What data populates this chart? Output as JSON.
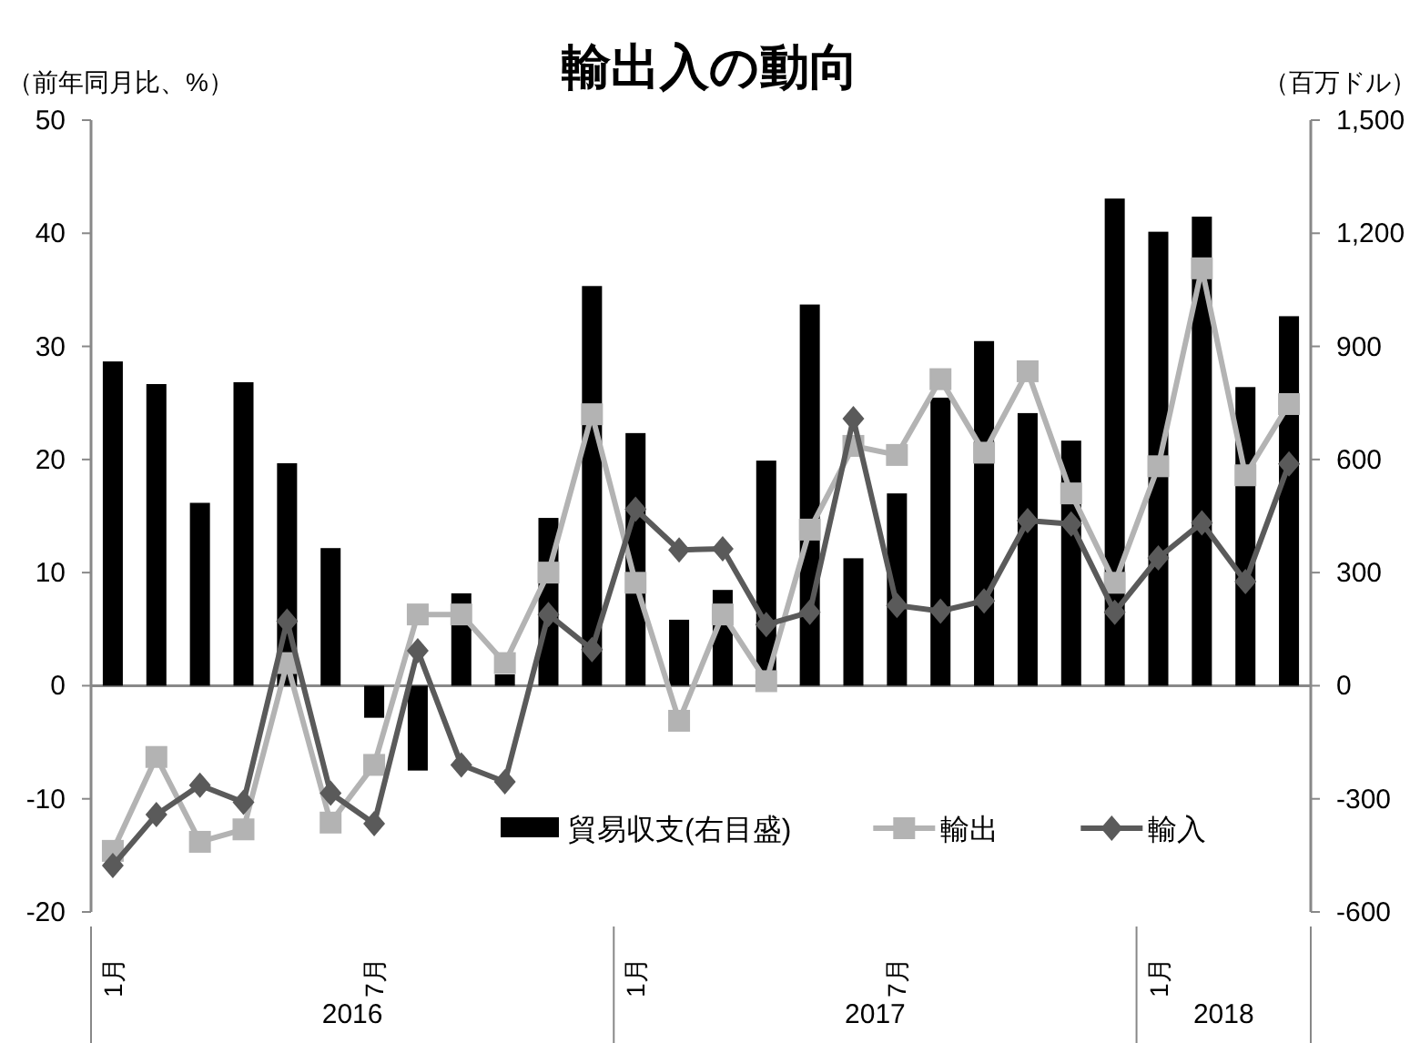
{
  "chart_data": {
    "type": "bar",
    "title": "輸出入の動向",
    "ylabel": "（前年同月比、%）",
    "y2label": "（百万ドル）",
    "categories": [
      "1月",
      null,
      null,
      null,
      null,
      null,
      "7月",
      null,
      null,
      null,
      null,
      null,
      "1月",
      null,
      null,
      null,
      null,
      null,
      "7月",
      null,
      null,
      null,
      null,
      null,
      "1月",
      null,
      null,
      null
    ],
    "annotations": [
      "2016",
      "2017",
      "2018"
    ],
    "series": [
      {
        "name": "貿易収支(右目盛)",
        "type": "bar",
        "axis": "y2",
        "color": "#000000",
        "values": [
          860,
          800,
          485,
          805,
          590,
          365,
          -85,
          -225,
          245,
          30,
          445,
          1060,
          670,
          175,
          254,
          597,
          1011,
          338,
          510,
          764,
          914,
          723,
          650,
          1292,
          1204,
          1244,
          792,
          980
        ]
      },
      {
        "name": "輸出",
        "type": "line",
        "color": "#b3b3b3",
        "marker": "square",
        "values": [
          -14.6,
          -6.3,
          -13.8,
          -12.7,
          2,
          -12.1,
          -7,
          6.3,
          6.3,
          2,
          10,
          24,
          9.1,
          -3.1,
          6.3,
          0.4,
          13.8,
          21.2,
          20.4,
          27.1,
          20.6,
          27.8,
          17,
          9.1,
          19.4,
          36.9,
          18.6,
          24.9
        ]
      },
      {
        "name": "輸入",
        "type": "line",
        "color": "#5a5a5a",
        "marker": "diamond",
        "values": [
          -15.9,
          -11.4,
          -8.8,
          -10.3,
          5.7,
          -9.5,
          -12.2,
          3.1,
          -7,
          -8.5,
          6.3,
          3.2,
          15.6,
          12,
          12.1,
          5.4,
          6.5,
          23.6,
          7.1,
          6.6,
          7.5,
          14.6,
          14.3,
          6.5,
          11.3,
          14.4,
          9.2,
          19.6
        ]
      }
    ],
    "ylim": [
      -20,
      50
    ],
    "yticks": [
      -20,
      -10,
      0,
      10,
      20,
      30,
      40,
      50
    ],
    "y2lim": [
      -600,
      1500
    ],
    "y2ticks": [
      {
        "value": -600,
        "label": "-600"
      },
      {
        "value": -300,
        "label": "-300"
      },
      0,
      300,
      600,
      900,
      {
        "value": 1200,
        "label": "1,200"
      },
      {
        "value": 1500,
        "label": "1,500"
      }
    ],
    "legend": "bottom"
  }
}
